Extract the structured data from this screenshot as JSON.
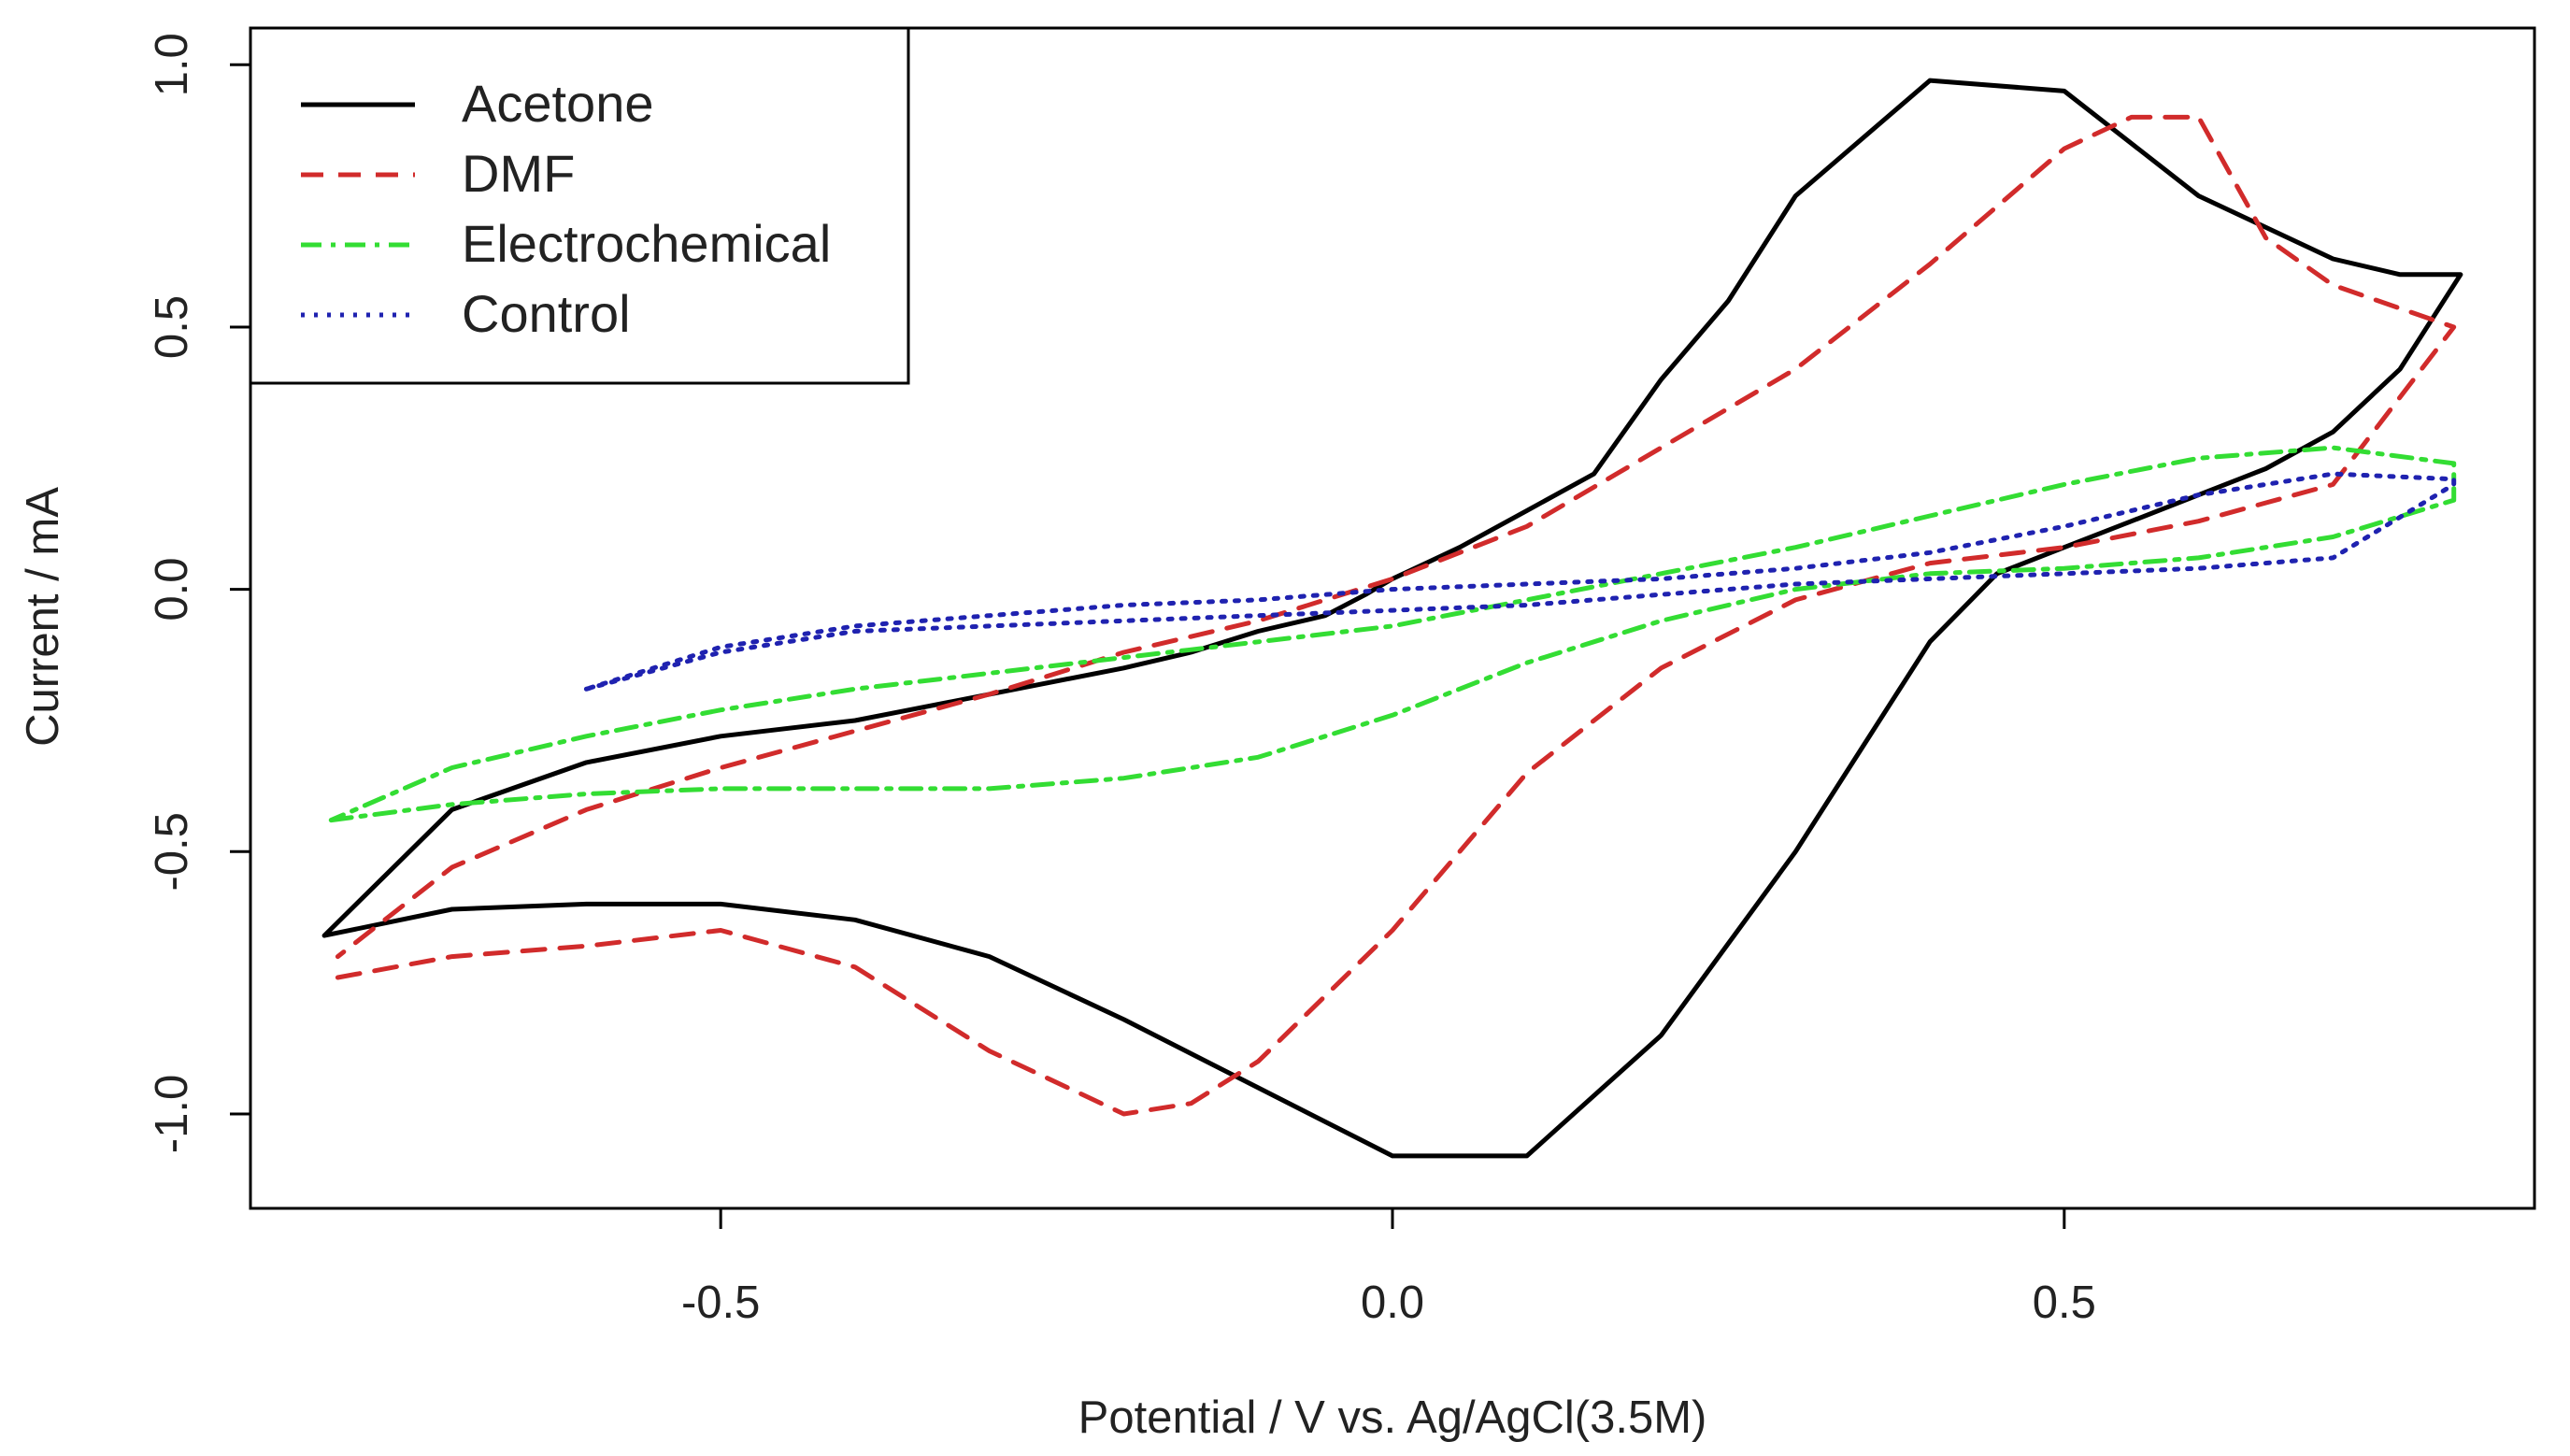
{
  "chart_data": {
    "type": "line",
    "title": "",
    "xlabel": "Potential / V vs. Ag/AgCl(3.5M)",
    "ylabel": "Current / mA",
    "xlim": [
      -0.85,
      0.85
    ],
    "ylim": [
      -1.18,
      1.07
    ],
    "grid": false,
    "legend_position": "top-left",
    "x_ticks": [
      {
        "value": -0.5,
        "label": "-0.5"
      },
      {
        "value": 0.0,
        "label": "0.0"
      },
      {
        "value": 0.5,
        "label": "0.5"
      }
    ],
    "y_ticks": [
      {
        "value": -1.0,
        "label": "-1.0"
      },
      {
        "value": -0.5,
        "label": "-0.5"
      },
      {
        "value": 0.0,
        "label": "0.0"
      },
      {
        "value": 0.5,
        "label": "0.5"
      },
      {
        "value": 1.0,
        "label": "1.0"
      }
    ],
    "series": [
      {
        "name": "Acetone",
        "color": "#000000",
        "style": "solid",
        "x": [
          -0.795,
          -0.7,
          -0.6,
          -0.5,
          -0.4,
          -0.3,
          -0.2,
          -0.1,
          0.0,
          0.1,
          0.2,
          0.3,
          0.35,
          0.4,
          0.45,
          0.5,
          0.55,
          0.6,
          0.65,
          0.7,
          0.75,
          0.795,
          0.795,
          0.75,
          0.7,
          0.6,
          0.5,
          0.4,
          0.3,
          0.25,
          0.2,
          0.15,
          0.1,
          0.05,
          0.0,
          -0.02,
          -0.05,
          -0.1,
          -0.15,
          -0.2,
          -0.3,
          -0.4,
          -0.5,
          -0.6,
          -0.7,
          -0.795
        ],
        "y": [
          -0.66,
          -0.61,
          -0.6,
          -0.6,
          -0.63,
          -0.7,
          -0.82,
          -0.95,
          -1.08,
          -1.08,
          -0.85,
          -0.5,
          -0.3,
          -0.1,
          0.03,
          0.08,
          0.13,
          0.18,
          0.23,
          0.3,
          0.42,
          0.6,
          0.6,
          0.6,
          0.63,
          0.75,
          0.95,
          0.97,
          0.75,
          0.55,
          0.4,
          0.22,
          0.15,
          0.08,
          0.02,
          -0.01,
          -0.05,
          -0.08,
          -0.12,
          -0.15,
          -0.2,
          -0.25,
          -0.28,
          -0.33,
          -0.42,
          -0.66
        ]
      },
      {
        "name": "DMF",
        "color": "#d12b2b",
        "style": "dashed",
        "x": [
          -0.785,
          -0.7,
          -0.6,
          -0.5,
          -0.4,
          -0.3,
          -0.2,
          -0.15,
          -0.1,
          0.0,
          0.1,
          0.2,
          0.3,
          0.4,
          0.5,
          0.6,
          0.7,
          0.79,
          0.79,
          0.7,
          0.65,
          0.6,
          0.55,
          0.5,
          0.45,
          0.4,
          0.3,
          0.2,
          0.1,
          0.0,
          -0.1,
          -0.2,
          -0.3,
          -0.4,
          -0.5,
          -0.6,
          -0.7,
          -0.785
        ],
        "y": [
          -0.74,
          -0.7,
          -0.68,
          -0.65,
          -0.72,
          -0.88,
          -1.0,
          -0.98,
          -0.9,
          -0.65,
          -0.35,
          -0.15,
          -0.02,
          0.05,
          0.08,
          0.13,
          0.2,
          0.5,
          0.5,
          0.58,
          0.67,
          0.9,
          0.9,
          0.84,
          0.73,
          0.62,
          0.42,
          0.27,
          0.12,
          0.02,
          -0.06,
          -0.12,
          -0.2,
          -0.27,
          -0.34,
          -0.42,
          -0.53,
          -0.7
        ]
      },
      {
        "name": "Electrochemical",
        "color": "#33dd33",
        "style": "dashdot",
        "x": [
          -0.79,
          -0.7,
          -0.6,
          -0.5,
          -0.4,
          -0.3,
          -0.2,
          -0.1,
          0.0,
          0.1,
          0.2,
          0.3,
          0.4,
          0.5,
          0.6,
          0.7,
          0.79,
          0.79,
          0.7,
          0.6,
          0.5,
          0.4,
          0.3,
          0.2,
          0.1,
          0.0,
          -0.1,
          -0.2,
          -0.3,
          -0.4,
          -0.5,
          -0.6,
          -0.7,
          -0.79
        ],
        "y": [
          -0.44,
          -0.41,
          -0.39,
          -0.38,
          -0.38,
          -0.38,
          -0.36,
          -0.32,
          -0.24,
          -0.14,
          -0.06,
          0.0,
          0.03,
          0.04,
          0.06,
          0.1,
          0.17,
          0.24,
          0.27,
          0.25,
          0.2,
          0.14,
          0.08,
          0.03,
          -0.02,
          -0.07,
          -0.1,
          -0.13,
          -0.16,
          -0.19,
          -0.23,
          -0.28,
          -0.34,
          -0.44
        ]
      },
      {
        "name": "Control",
        "color": "#1f22b0",
        "style": "dotted",
        "x": [
          -0.6,
          -0.5,
          -0.4,
          -0.3,
          -0.2,
          -0.1,
          0.0,
          0.1,
          0.2,
          0.3,
          0.4,
          0.5,
          0.6,
          0.7,
          0.79,
          0.79,
          0.7,
          0.6,
          0.5,
          0.4,
          0.3,
          0.2,
          0.1,
          0.0,
          -0.1,
          -0.2,
          -0.3,
          -0.4,
          -0.5,
          -0.6
        ],
        "y": [
          -0.19,
          -0.12,
          -0.08,
          -0.07,
          -0.06,
          -0.05,
          -0.04,
          -0.03,
          -0.01,
          0.01,
          0.02,
          0.03,
          0.04,
          0.06,
          0.2,
          0.21,
          0.22,
          0.18,
          0.12,
          0.07,
          0.04,
          0.02,
          0.01,
          0.0,
          -0.02,
          -0.03,
          -0.05,
          -0.07,
          -0.11,
          -0.19
        ]
      }
    ]
  }
}
